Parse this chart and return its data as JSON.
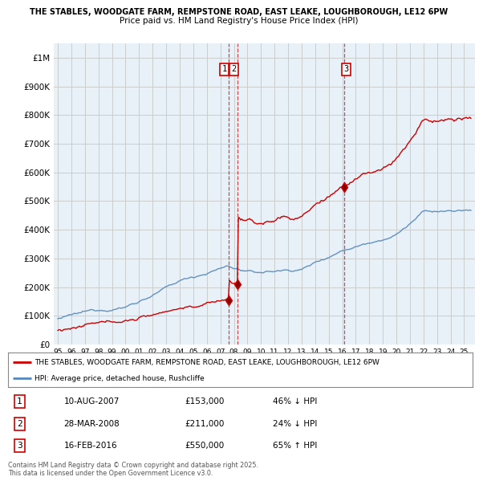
{
  "title_line1": "THE STABLES, WOODGATE FARM, REMPSTONE ROAD, EAST LEAKE, LOUGHBOROUGH, LE12 6PW",
  "title_line2": "Price paid vs. HM Land Registry's House Price Index (HPI)",
  "ylim": [
    0,
    1050000
  ],
  "yticks": [
    0,
    100000,
    200000,
    300000,
    400000,
    500000,
    600000,
    700000,
    800000,
    900000,
    1000000
  ],
  "ytick_labels": [
    "£0",
    "£100K",
    "£200K",
    "£300K",
    "£400K",
    "£500K",
    "£600K",
    "£700K",
    "£800K",
    "£900K",
    "£1M"
  ],
  "trans_dates": [
    2007.609,
    2008.239,
    2016.12
  ],
  "trans_prices": [
    153000,
    211000,
    550000
  ],
  "trans_labels": [
    "1",
    "2",
    "3"
  ],
  "legend_property_label": "THE STABLES, WOODGATE FARM, REMPSTONE ROAD, EAST LEAKE, LOUGHBOROUGH, LE12 6PW",
  "legend_hpi_label": "HPI: Average price, detached house, Rushcliffe",
  "table_rows": [
    {
      "num": "1",
      "date": "10-AUG-2007",
      "price": "£153,000",
      "hpi": "46% ↓ HPI"
    },
    {
      "num": "2",
      "date": "28-MAR-2008",
      "price": "£211,000",
      "hpi": "24% ↓ HPI"
    },
    {
      "num": "3",
      "date": "16-FEB-2016",
      "price": "£550,000",
      "hpi": "65% ↑ HPI"
    }
  ],
  "footer_text": "Contains HM Land Registry data © Crown copyright and database right 2025.\nThis data is licensed under the Open Government Licence v3.0.",
  "property_color": "#cc0000",
  "hpi_color": "#5588bb",
  "vline_color": "#cc0000",
  "bg_color": "#ffffff",
  "grid_color": "#cccccc",
  "plot_bg_color": "#e8f0f8"
}
